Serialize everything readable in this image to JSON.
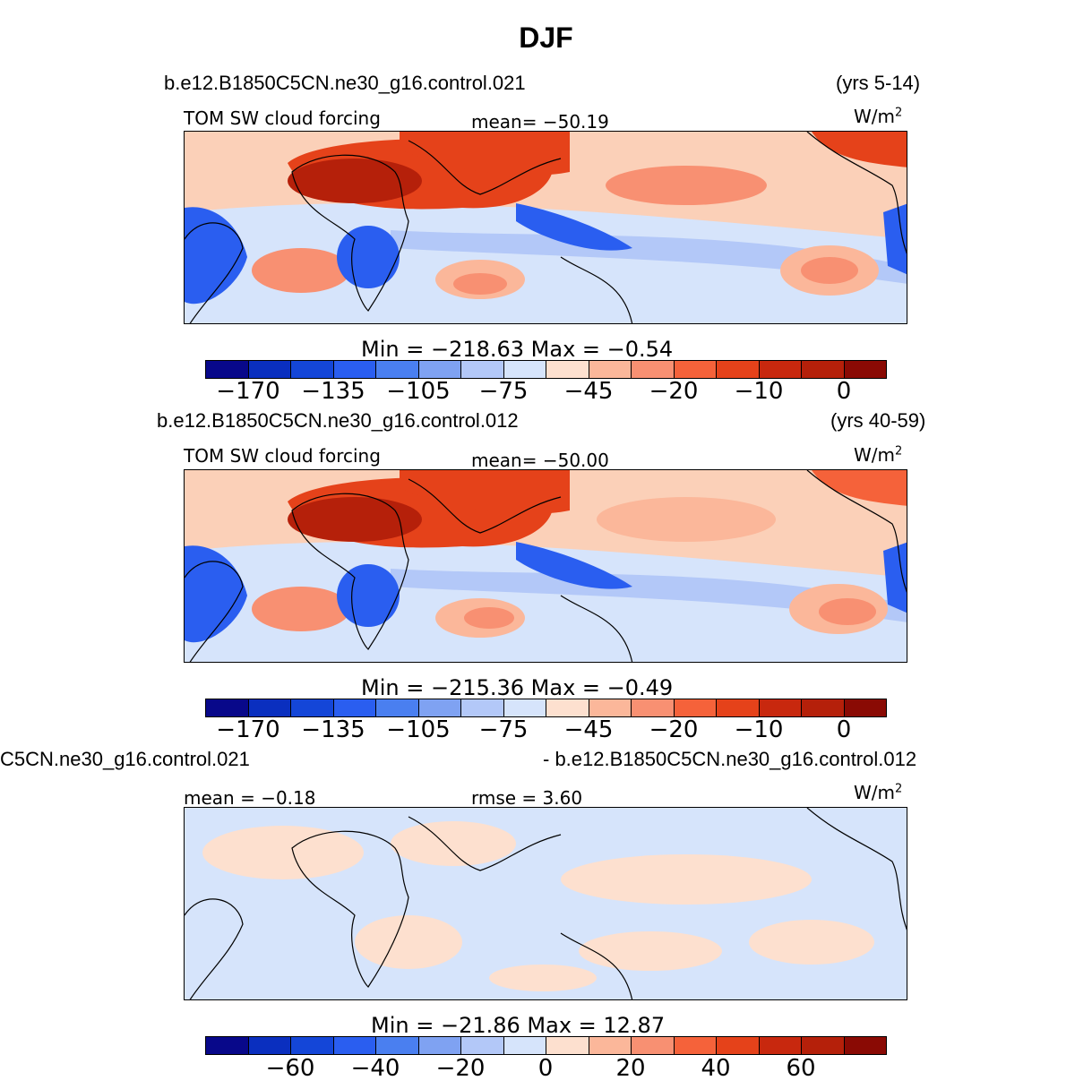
{
  "title": "DJF",
  "panels": [
    {
      "case_left": "b.e12.B1850C5CN.ne30_g16.control.021",
      "case_right": "(yrs 5-14)",
      "variable": "TOM SW cloud forcing",
      "stat_left": "",
      "mean": "mean= −50.19",
      "rmse": "",
      "units": "W/m",
      "units_sup": "2",
      "minmax": "Min = −218.63 Max =  −0.54",
      "colorbar_labels": [
        "−170",
        "−135",
        "−105",
        "−75",
        "−45",
        "−20",
        "−10",
        "0"
      ]
    },
    {
      "case_left": "b.e12.B1850C5CN.ne30_g16.control.012",
      "case_right": "(yrs 40-59)",
      "variable": "TOM SW cloud forcing",
      "stat_left": "",
      "mean": "mean= −50.00",
      "rmse": "",
      "units": "W/m",
      "units_sup": "2",
      "minmax": "Min = −215.36 Max =  −0.49",
      "colorbar_labels": [
        "−170",
        "−135",
        "−105",
        "−75",
        "−45",
        "−20",
        "−10",
        "0"
      ]
    },
    {
      "case_left": "C5CN.ne30_g16.control.021",
      "case_right": "- b.e12.B1850C5CN.ne30_g16.control.012",
      "variable": "",
      "stat_left": "mean =  −0.18",
      "mean": "",
      "rmse": "rmse =   3.60",
      "units": "W/m",
      "units_sup": "2",
      "minmax": "Min = −21.86 Max =  12.87",
      "colorbar_labels": [
        "−60",
        "−40",
        "−20",
        "0",
        "20",
        "40",
        "60"
      ]
    }
  ],
  "colors": {
    "palette": [
      "#08088a",
      "#0a2fbf",
      "#1446d8",
      "#2a5ef0",
      "#4a7ff0",
      "#7fa2f2",
      "#b3c8f8",
      "#d6e4fb",
      "#fde0cf",
      "#fbb79a",
      "#f89072",
      "#f5623a",
      "#e5421a",
      "#c8280e",
      "#b5200a",
      "#8a0a04"
    ],
    "ocean_neutral": "#fde6d6",
    "ocean_light_blue": "#d6e4fb",
    "land_line": "#000000"
  },
  "chart_data": {
    "type": "heatmap",
    "maps": [
      {
        "field": "TOM SW cloud forcing",
        "units": "W/m2",
        "mean": -50.19,
        "min": -218.63,
        "max": -0.54,
        "contour_levels": [
          -170,
          -135,
          -105,
          -75,
          -45,
          -20,
          -10,
          0
        ]
      },
      {
        "field": "TOM SW cloud forcing",
        "units": "W/m2",
        "mean": -50.0,
        "min": -215.36,
        "max": -0.49,
        "contour_levels": [
          -170,
          -135,
          -105,
          -75,
          -45,
          -20,
          -10,
          0
        ]
      },
      {
        "field": "difference",
        "units": "W/m2",
        "mean": -0.18,
        "rmse": 3.6,
        "min": -21.86,
        "max": 12.87,
        "contour_levels": [
          -60,
          -40,
          -20,
          0,
          20,
          40,
          60
        ]
      }
    ]
  }
}
